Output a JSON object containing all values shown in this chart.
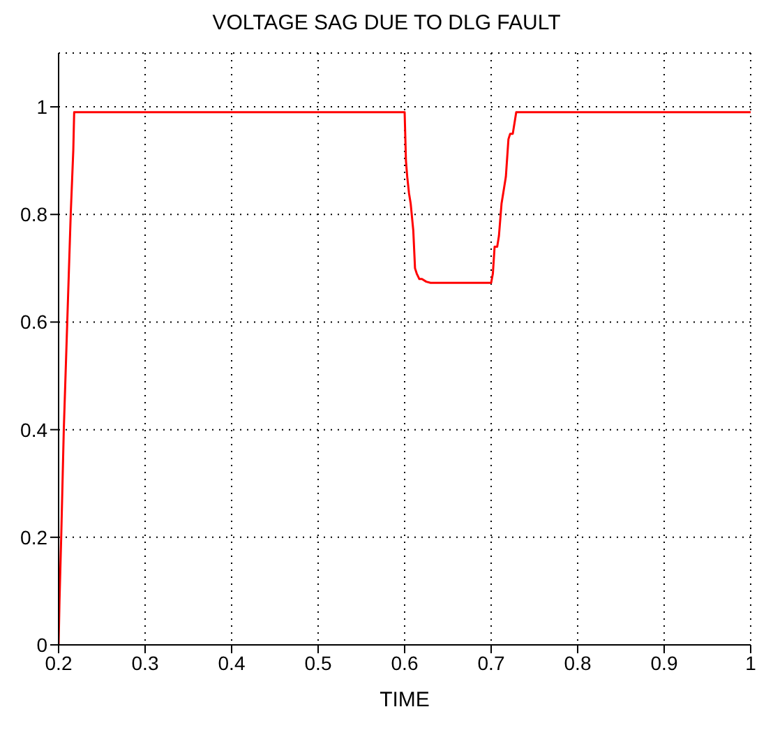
{
  "chart_data": {
    "type": "line",
    "title": "VOLTAGE SAG DUE TO DLG FAULT",
    "xlabel": "TIME",
    "series": [
      {
        "color": "#ff0000",
        "x": [
          0.2,
          0.201,
          0.203,
          0.206,
          0.21,
          0.214,
          0.217,
          0.218,
          0.3,
          0.4,
          0.5,
          0.6,
          0.6015,
          0.603,
          0.605,
          0.607,
          0.61,
          0.612,
          0.614,
          0.617,
          0.62,
          0.625,
          0.63,
          0.65,
          0.68,
          0.7,
          0.702,
          0.704,
          0.707,
          0.709,
          0.712,
          0.714,
          0.717,
          0.72,
          0.722,
          0.725,
          0.727,
          0.729,
          0.8,
          0.9,
          1.0
        ],
        "values": [
          0,
          0.08,
          0.2,
          0.4,
          0.6,
          0.8,
          0.92,
          0.99,
          0.99,
          0.99,
          0.99,
          0.99,
          0.9,
          0.87,
          0.84,
          0.82,
          0.77,
          0.7,
          0.69,
          0.68,
          0.68,
          0.675,
          0.673,
          0.673,
          0.673,
          0.673,
          0.69,
          0.74,
          0.74,
          0.76,
          0.82,
          0.84,
          0.87,
          0.94,
          0.95,
          0.95,
          0.97,
          0.99,
          0.99,
          0.99,
          0.99
        ]
      }
    ],
    "xlim": [
      0.2,
      1
    ],
    "xticks": [
      0.2,
      0.3,
      0.4,
      0.5,
      0.6,
      0.7,
      0.8,
      0.9,
      1
    ],
    "ylim": [
      0,
      1.1
    ],
    "yticks": [
      0,
      0.2,
      0.4,
      0.6,
      0.8,
      1
    ],
    "grid": true,
    "line_style": "solid",
    "marker": "none"
  }
}
